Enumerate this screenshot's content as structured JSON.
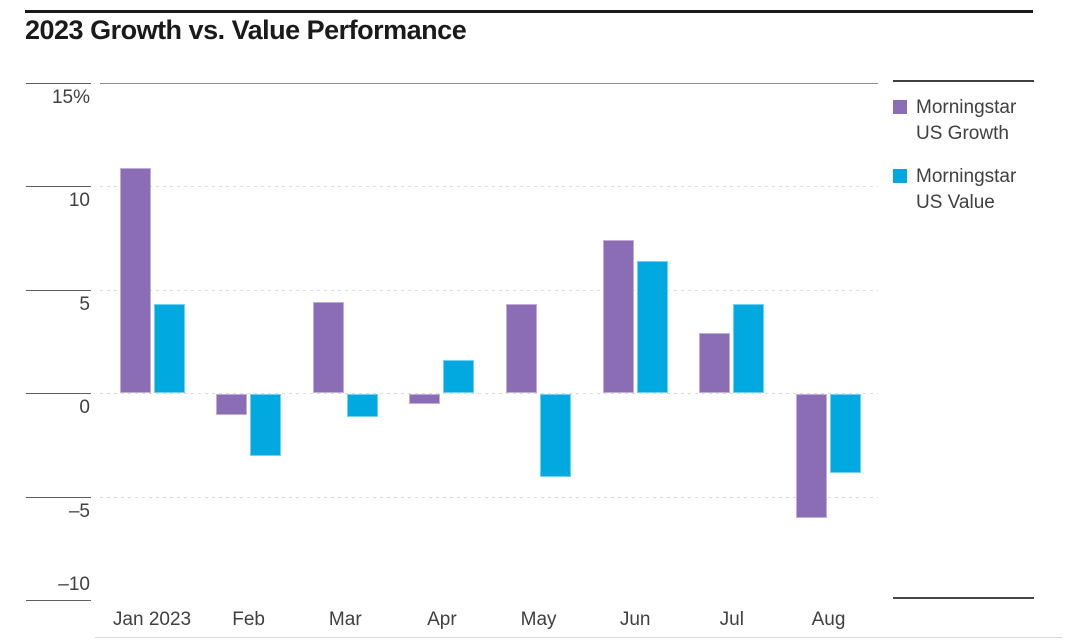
{
  "title": "2023 Growth vs. Value Performance",
  "chart_data": {
    "type": "bar",
    "categories": [
      "Jan 2023",
      "Feb",
      "Mar",
      "Apr",
      "May",
      "Jun",
      "Jul",
      "Aug"
    ],
    "series": [
      {
        "name": "Morningstar US Growth",
        "color": "#8b6db5",
        "values": [
          10.9,
          -1.0,
          4.4,
          -0.5,
          4.3,
          7.4,
          2.9,
          -6.0
        ]
      },
      {
        "name": "Morningstar US Value",
        "color": "#00a9e0",
        "values": [
          4.3,
          -3.0,
          -1.1,
          1.6,
          -4.0,
          6.4,
          4.3,
          -3.8
        ]
      }
    ],
    "title": "2023 Growth vs. Value Performance",
    "xlabel": "",
    "ylabel": "",
    "y_unit": "%",
    "ylim": [
      -10,
      15
    ],
    "yticks": [
      {
        "label": "15%",
        "value": 15
      },
      {
        "label": "10",
        "value": 10
      },
      {
        "label": "5",
        "value": 5
      },
      {
        "label": "0",
        "value": 0
      },
      {
        "label": "–5",
        "value": -5
      },
      {
        "label": "–10",
        "value": -10
      }
    ],
    "grid": "horizontal-dashed",
    "legend_position": "right"
  },
  "legend": {
    "items": [
      {
        "line1": "Morningstar",
        "line2": "US Growth",
        "color": "#8b6db5"
      },
      {
        "line1": "Morningstar",
        "line2": "US Value",
        "color": "#00a9e0"
      }
    ]
  },
  "colors": {
    "growth_purple": "#8b6db5",
    "value_blue": "#00a9e0",
    "title_text": "#1a1a1a",
    "label_text": "#404040",
    "axis_tick": "#5e5e5e",
    "grid_light": "#dcdcdc",
    "top_rule_black": "#1a1a1a",
    "legend_rule": "#3f3f3f"
  }
}
